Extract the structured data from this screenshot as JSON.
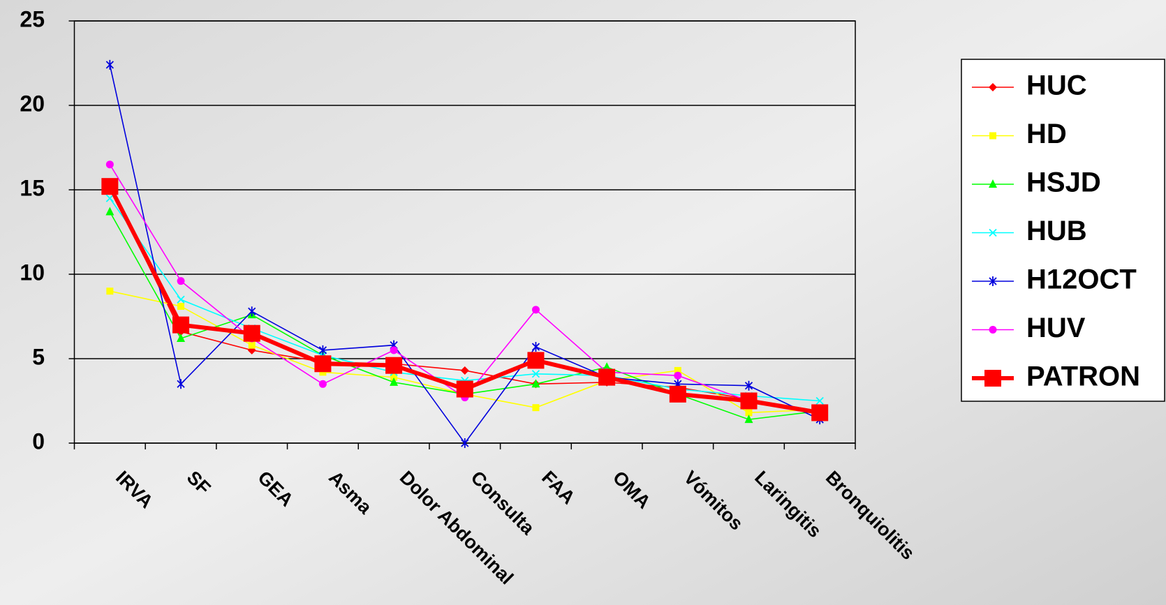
{
  "chart_data": {
    "type": "line",
    "categories": [
      "IRVA",
      "SF",
      "GEA",
      "Asma",
      "Dolor Abdominal",
      "Consulta",
      "FAA",
      "OMA",
      "Vómitos",
      "Laringitis",
      "Bronquiolitis"
    ],
    "series": [
      {
        "name": "HUC",
        "color": "#ff0000",
        "marker": "diamond",
        "values": [
          15.2,
          6.6,
          5.5,
          4.8,
          4.7,
          4.3,
          3.5,
          3.6,
          3.3,
          2.6,
          1.9
        ]
      },
      {
        "name": "HD",
        "color": "#ffff00",
        "marker": "square",
        "values": [
          9.0,
          8.1,
          5.8,
          4.2,
          3.9,
          2.9,
          2.1,
          3.7,
          4.3,
          1.8,
          2.0
        ]
      },
      {
        "name": "HSJD",
        "color": "#00ff00",
        "marker": "triangle",
        "values": [
          13.7,
          6.2,
          7.6,
          5.2,
          3.6,
          2.9,
          3.5,
          4.5,
          2.9,
          1.4,
          1.9
        ]
      },
      {
        "name": "HUB",
        "color": "#00ffff",
        "marker": "x",
        "values": [
          14.5,
          8.5,
          6.8,
          5.2,
          4.2,
          3.7,
          4.1,
          4.0,
          3.2,
          2.8,
          2.5
        ]
      },
      {
        "name": "H12OCT",
        "color": "#0000dd",
        "marker": "asterisk",
        "values": [
          22.4,
          3.5,
          7.8,
          5.5,
          5.8,
          0,
          5.7,
          3.9,
          3.5,
          3.4,
          1.4
        ]
      },
      {
        "name": "HUV",
        "color": "#ff00ff",
        "marker": "circle",
        "values": [
          16.5,
          9.6,
          6.2,
          3.5,
          5.5,
          2.7,
          7.9,
          4.2,
          4.0,
          2.5,
          1.8
        ]
      },
      {
        "name": "PATRON",
        "color": "#ff0000",
        "marker": "bigsquare",
        "values": [
          15.2,
          7.0,
          6.5,
          4.7,
          4.6,
          3.2,
          4.9,
          3.9,
          2.9,
          2.5,
          1.8
        ]
      }
    ],
    "ylim": [
      0,
      25
    ],
    "yticks": [
      0,
      5,
      10,
      15,
      20,
      25
    ],
    "grid": true,
    "legend": "right"
  }
}
